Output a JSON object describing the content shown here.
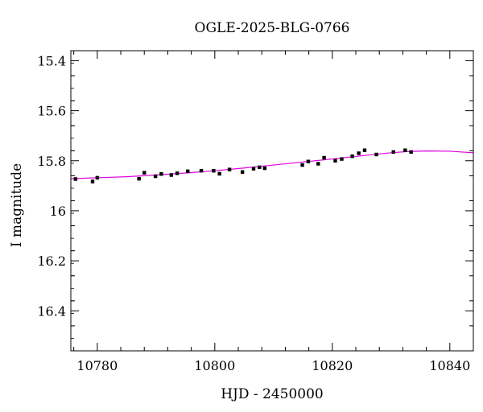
{
  "chart_data": {
    "type": "scatter",
    "title": "OGLE-2025-BLG-0766",
    "xlabel": "HJD - 2450000",
    "ylabel": "I magnitude",
    "xlim": [
      10775.5,
      10844
    ],
    "ylim": [
      16.56,
      15.36
    ],
    "y_inverted": true,
    "grid": false,
    "x_ticks": [
      10780,
      10800,
      10820,
      10840
    ],
    "x_tick_labels": [
      "10780",
      "10800",
      "10820",
      "10840"
    ],
    "y_ticks": [
      15.4,
      15.6,
      15.8,
      16.0,
      16.2,
      16.4
    ],
    "y_tick_labels": [
      "15.4",
      "15.6",
      "15.8",
      "16",
      "16.2",
      "16.4"
    ],
    "points": {
      "x": [
        10776.3,
        10779.2,
        10780.0,
        10787.1,
        10788.0,
        10789.9,
        10790.9,
        10792.6,
        10793.6,
        10795.4,
        10797.7,
        10799.8,
        10800.8,
        10802.5,
        10804.7,
        10806.6,
        10807.6,
        10808.5,
        10814.9,
        10815.9,
        10817.6,
        10818.6,
        10820.5,
        10821.6,
        10823.4,
        10824.5,
        10825.5,
        10827.5,
        10830.4,
        10832.4,
        10833.4
      ],
      "y": [
        15.873,
        15.883,
        15.868,
        15.872,
        15.848,
        15.862,
        15.853,
        15.857,
        15.85,
        15.842,
        15.84,
        15.84,
        15.852,
        15.835,
        15.845,
        15.832,
        15.826,
        15.83,
        15.817,
        15.803,
        15.812,
        15.788,
        15.8,
        15.793,
        15.782,
        15.77,
        15.758,
        15.775,
        15.765,
        15.758,
        15.765
      ],
      "yerr": [
        0.007,
        0.008,
        0.007,
        0.007,
        0.007,
        0.007,
        0.007,
        0.007,
        0.007,
        0.007,
        0.006,
        0.006,
        0.007,
        0.006,
        0.007,
        0.007,
        0.006,
        0.006,
        0.007,
        0.006,
        0.006,
        0.006,
        0.006,
        0.006,
        0.006,
        0.006,
        0.006,
        0.006,
        0.006,
        0.006,
        0.006
      ],
      "color": "#000000"
    },
    "model": {
      "color": "#e100e1",
      "x": [
        10775.5,
        10780,
        10785,
        10790,
        10795,
        10800,
        10805,
        10810,
        10815,
        10820,
        10825,
        10830,
        10833,
        10836,
        10840,
        10844
      ],
      "y": [
        15.872,
        15.868,
        15.864,
        15.857,
        15.849,
        15.84,
        15.829,
        15.817,
        15.805,
        15.793,
        15.78,
        15.768,
        15.763,
        15.761,
        15.762,
        15.768
      ]
    }
  }
}
